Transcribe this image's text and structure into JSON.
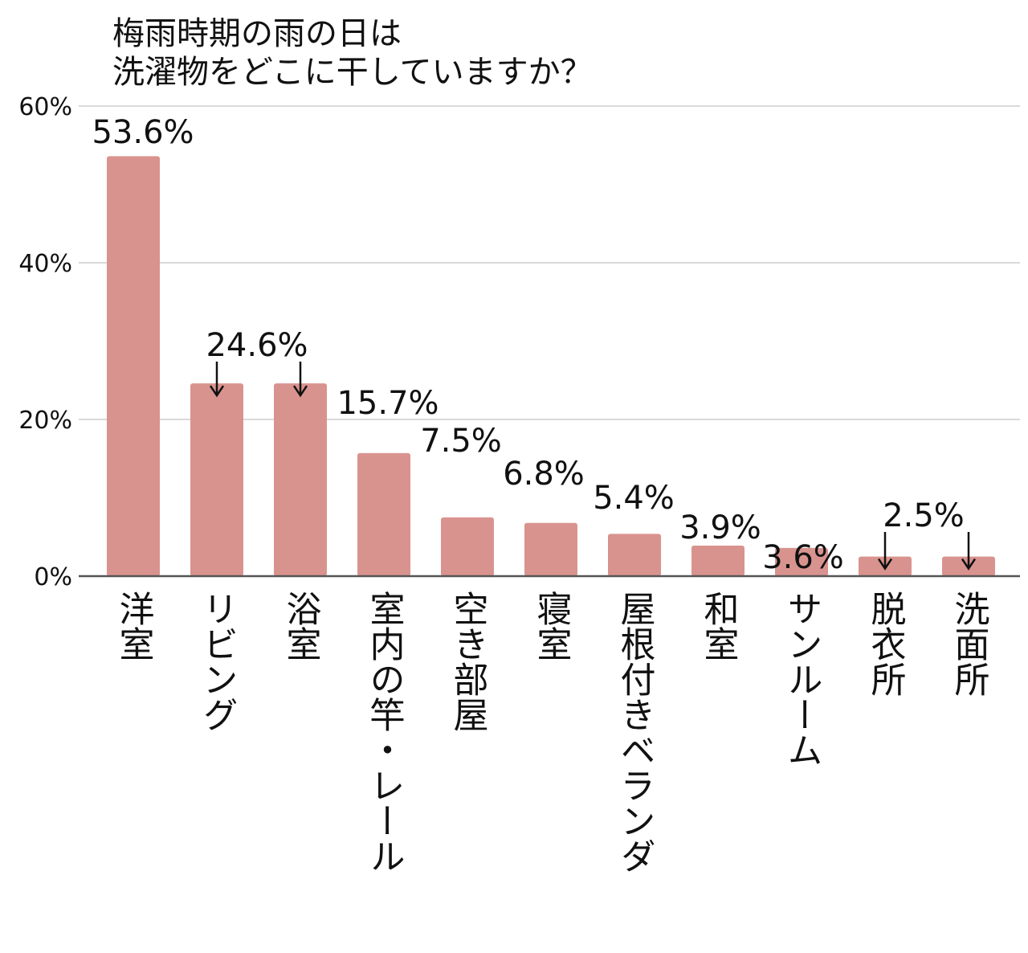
{
  "chart_data": {
    "type": "bar",
    "title_lines": [
      "梅雨時期の雨の日は",
      "洗濯物をどこに干していますか？"
    ],
    "xlabel": "",
    "ylabel": "",
    "ylim": [
      0,
      60
    ],
    "y_ticks": [
      {
        "value": 0,
        "label": "0%"
      },
      {
        "value": 20,
        "label": "20%"
      },
      {
        "value": 40,
        "label": "40%"
      },
      {
        "value": 60,
        "label": "60%"
      }
    ],
    "grid": true,
    "color": "#d9938e",
    "categories": [
      "洋室",
      "リビング",
      "浴室",
      "室内の竿・レール",
      "空き部屋",
      "寝室",
      "屋根付きベランダ",
      "和室",
      "サンルーム",
      "脱衣所",
      "洗面所"
    ],
    "values": [
      53.6,
      24.6,
      24.6,
      15.7,
      7.5,
      6.8,
      5.4,
      3.9,
      3.6,
      2.5,
      2.5
    ],
    "data_labels": [
      {
        "text": "53.6%",
        "arrows_to": []
      },
      {
        "text": "24.6%",
        "arrows_to": [
          1,
          2
        ]
      },
      {
        "text": "15.7%",
        "arrows_to": []
      },
      {
        "text": "7.5%",
        "arrows_to": []
      },
      {
        "text": "6.8%",
        "arrows_to": []
      },
      {
        "text": "5.4%",
        "arrows_to": []
      },
      {
        "text": "3.9%",
        "arrows_to": []
      },
      {
        "text": "3.6%",
        "arrows_to": []
      },
      {
        "text": "2.5%",
        "arrows_to": [
          9,
          10
        ]
      }
    ]
  }
}
